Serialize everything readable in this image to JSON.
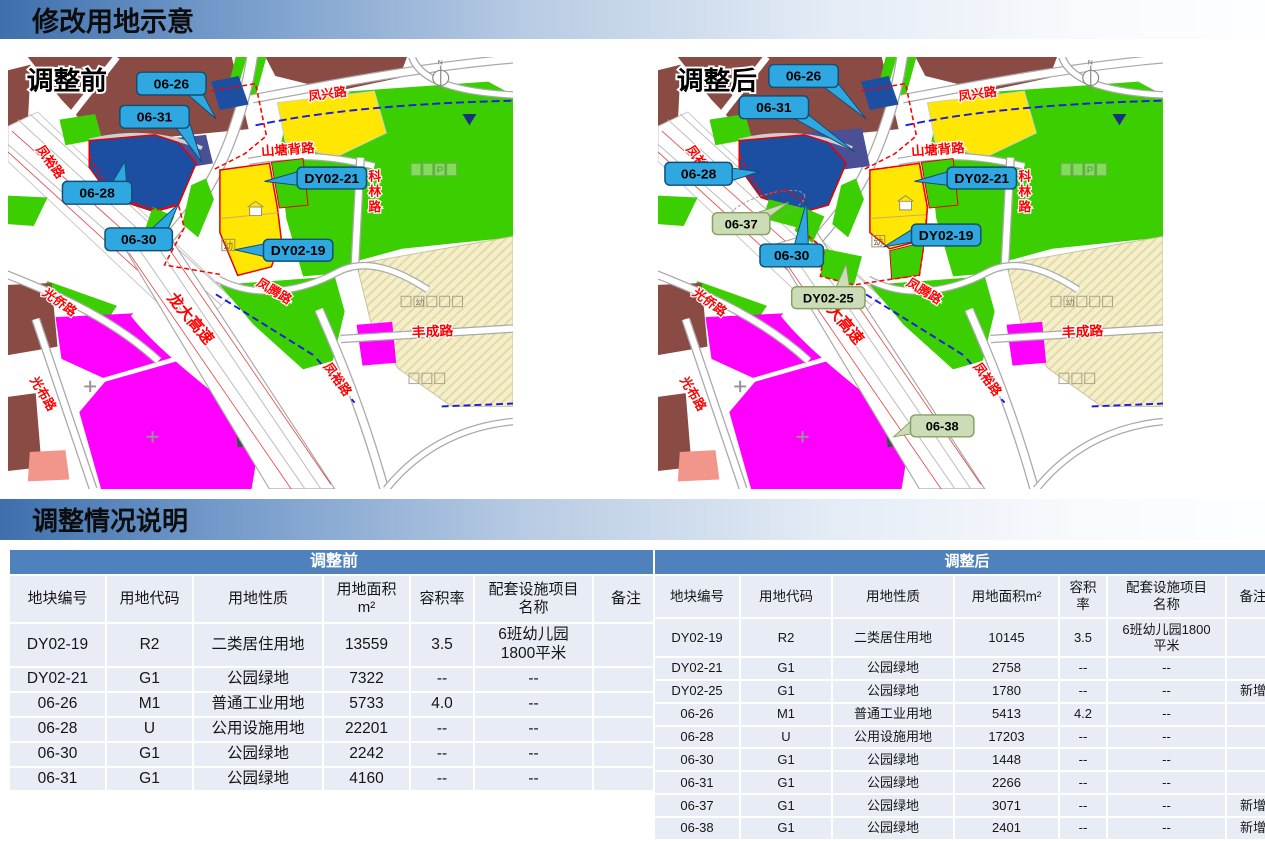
{
  "page": {
    "title": "修改用地示意",
    "section_title": "调整情况说明"
  },
  "maps": {
    "before": {
      "label": "调整前",
      "callouts": [
        "06-26",
        "06-31",
        "06-28",
        "06-30",
        "DY02-21",
        "DY02-19"
      ]
    },
    "after": {
      "label": "调整后",
      "callouts": [
        "06-26",
        "06-31",
        "06-28",
        "06-37",
        "06-30",
        "DY02-25",
        "DY02-21",
        "DY02-19",
        "06-38"
      ]
    },
    "road_labels": [
      "凤裕路",
      "凤兴路",
      "山塘背路",
      "科林路",
      "凤腾路",
      "丰成路",
      "凤裕路",
      "光侨路",
      "光布路",
      "龙大高速"
    ],
    "north_label": "N",
    "glyphs": {
      "kindergarten": "幼",
      "parking": "P"
    }
  },
  "colors": {
    "header_blue": "#4F81BD",
    "callout_blue": "#2FA8E1",
    "callout_green": "#CBDCB6",
    "residential_yellow": "#FFE603",
    "park_green": "#3BCE00",
    "block_maroon": "#8B4B45",
    "utility_blue": "#1C4FA1",
    "commercial_magenta": "#FF00FE"
  },
  "tables": {
    "before": {
      "title": "调整前",
      "headers": [
        "地块编号",
        "用地代码",
        "用地性质",
        "用地面积\nm²",
        "容积率",
        "配套设施项目\n名称",
        "备注"
      ],
      "rows": [
        [
          "DY02-19",
          "R2",
          "二类居住用地",
          "13559",
          "3.5",
          "6班幼儿园\n1800平米",
          ""
        ],
        [
          "DY02-21",
          "G1",
          "公园绿地",
          "7322",
          "--",
          "--",
          ""
        ],
        [
          "06-26",
          "M1",
          "普通工业用地",
          "5733",
          "4.0",
          "--",
          ""
        ],
        [
          "06-28",
          "U",
          "公用设施用地",
          "22201",
          "--",
          "--",
          ""
        ],
        [
          "06-30",
          "G1",
          "公园绿地",
          "2242",
          "--",
          "--",
          ""
        ],
        [
          "06-31",
          "G1",
          "公园绿地",
          "4160",
          "--",
          "--",
          ""
        ]
      ]
    },
    "after": {
      "title": "调整后",
      "headers": [
        "地块编号",
        "用地代码",
        "用地性质",
        "用地面积m²",
        "容积\n率",
        "配套设施项目\n名称",
        "备注"
      ],
      "rows": [
        [
          "DY02-19",
          "R2",
          "二类居住用地",
          "10145",
          "3.5",
          "6班幼儿园1800\n平米",
          ""
        ],
        [
          "DY02-21",
          "G1",
          "公园绿地",
          "2758",
          "--",
          "--",
          ""
        ],
        [
          "DY02-25",
          "G1",
          "公园绿地",
          "1780",
          "--",
          "--",
          "新增"
        ],
        [
          "06-26",
          "M1",
          "普通工业用地",
          "5413",
          "4.2",
          "--",
          ""
        ],
        [
          "06-28",
          "U",
          "公用设施用地",
          "17203",
          "--",
          "--",
          ""
        ],
        [
          "06-30",
          "G1",
          "公园绿地",
          "1448",
          "--",
          "--",
          ""
        ],
        [
          "06-31",
          "G1",
          "公园绿地",
          "2266",
          "--",
          "--",
          ""
        ],
        [
          "06-37",
          "G1",
          "公园绿地",
          "3071",
          "--",
          "--",
          "新增"
        ],
        [
          "06-38",
          "G1",
          "公园绿地",
          "2401",
          "--",
          "--",
          "新增"
        ]
      ]
    }
  }
}
